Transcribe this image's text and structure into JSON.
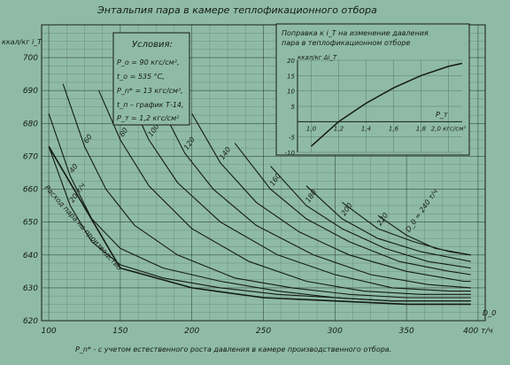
{
  "chart_data": [
    {
      "type": "line",
      "title": "Энтальпия пара в камере теплофикационного отбора",
      "ylabel": "ккал/кг  i_T",
      "ylim": [
        620,
        710
      ],
      "y_ticks": [
        "620",
        "630",
        "640",
        "650",
        "660",
        "670",
        "680",
        "690",
        "700"
      ],
      "xlim": [
        95,
        405
      ],
      "x_ticks": [
        "100",
        "150",
        "200",
        "250",
        "300",
        "350",
        "400 т/ч"
      ],
      "x_ticks_values": [
        100,
        150,
        200,
        250,
        300,
        350,
        400
      ],
      "x_axis_symbol": "D_0",
      "xlabel": "P_n* - с учетом естественного роста давления в камере производственного отбора.",
      "grid": true,
      "conditions": {
        "heading": "Условия:",
        "lines": [
          "P_o = 90 кгс/см²,",
          "t_o = 535 °С,",
          "P_n* = 13 кгс/см²,",
          "t_п – график Т-14,",
          "P_т = 1,2 кгс/см²"
        ]
      },
      "extraction_label": "Расход пара на производство",
      "series": [
        {
          "name": "20 т/ч",
          "values": [
            [
              100,
              673
            ],
            [
              115,
              655
            ],
            [
              130,
              644
            ],
            [
              150,
              637
            ],
            [
              180,
              633
            ],
            [
              220,
              630
            ],
            [
              260,
              628
            ],
            [
              300,
              627
            ],
            [
              340,
              626
            ],
            [
              380,
              626
            ],
            [
              395,
              626
            ]
          ]
        },
        {
          "name": "40",
          "values": [
            [
              100,
              683
            ],
            [
              115,
              664
            ],
            [
              130,
              651
            ],
            [
              150,
              642
            ],
            [
              180,
              636
            ],
            [
              220,
              632
            ],
            [
              260,
              629
            ],
            [
              300,
              627
            ],
            [
              340,
              626
            ],
            [
              380,
              626
            ],
            [
              395,
              626
            ]
          ]
        },
        {
          "name": "60",
          "values": [
            [
              110,
              692
            ],
            [
              125,
              673
            ],
            [
              140,
              660
            ],
            [
              160,
              649
            ],
            [
              190,
              640
            ],
            [
              230,
              633
            ],
            [
              270,
              630
            ],
            [
              310,
              628
            ],
            [
              350,
              627
            ],
            [
              395,
              627
            ]
          ]
        },
        {
          "name": "80",
          "values": [
            [
              135,
              690
            ],
            [
              150,
              675
            ],
            [
              170,
              661
            ],
            [
              200,
              648
            ],
            [
              240,
              638
            ],
            [
              280,
              632
            ],
            [
              320,
              629
            ],
            [
              360,
              628
            ],
            [
              395,
              628
            ]
          ]
        },
        {
          "name": "100",
          "values": [
            [
              155,
              689
            ],
            [
              170,
              675
            ],
            [
              190,
              662
            ],
            [
              220,
              650
            ],
            [
              260,
              640
            ],
            [
              300,
              634
            ],
            [
              340,
              630
            ],
            [
              380,
              629
            ],
            [
              395,
              629
            ]
          ]
        },
        {
          "name": "120",
          "values": [
            [
              175,
              688
            ],
            [
              195,
              671
            ],
            [
              215,
              660
            ],
            [
              245,
              649
            ],
            [
              285,
              640
            ],
            [
              325,
              634
            ],
            [
              365,
              631
            ],
            [
              395,
              630
            ]
          ]
        },
        {
          "name": "140",
          "values": [
            [
              200,
              683
            ],
            [
              220,
              668
            ],
            [
              245,
              656
            ],
            [
              275,
              647
            ],
            [
              310,
              640
            ],
            [
              350,
              635
            ],
            [
              390,
              632
            ],
            [
              395,
              632
            ]
          ]
        },
        {
          "name": "160",
          "values": [
            [
              230,
              674
            ],
            [
              255,
              660
            ],
            [
              280,
              651
            ],
            [
              310,
              644
            ],
            [
              345,
              638
            ],
            [
              380,
              635
            ],
            [
              395,
              634
            ]
          ]
        },
        {
          "name": "180",
          "values": [
            [
              255,
              667
            ],
            [
              280,
              655
            ],
            [
              305,
              648
            ],
            [
              335,
              642
            ],
            [
              365,
              638
            ],
            [
              395,
              636
            ]
          ]
        },
        {
          "name": "200",
          "values": [
            [
              280,
              661
            ],
            [
              305,
              651
            ],
            [
              330,
              645
            ],
            [
              360,
              641
            ],
            [
              395,
              638
            ]
          ]
        },
        {
          "name": "220",
          "values": [
            [
              305,
              656
            ],
            [
              330,
              648
            ],
            [
              355,
              644
            ],
            [
              380,
              641
            ],
            [
              395,
              640
            ]
          ]
        },
        {
          "name": "D_0 = 240 т/ч",
          "values": [
            [
              330,
              652
            ],
            [
              350,
              646
            ],
            [
              370,
              642
            ],
            [
              395,
              640
            ]
          ]
        }
      ],
      "lower_envelope": [
        [
          100,
          673
        ],
        [
          150,
          636
        ],
        [
          200,
          630
        ],
        [
          250,
          627
        ],
        [
          300,
          626
        ],
        [
          350,
          625
        ],
        [
          395,
          625
        ]
      ]
    },
    {
      "type": "line",
      "title": "Поправка к i_T на изменение давления пара в теплофикационном отборе",
      "ylabel": "ккал/кг  Δi_T",
      "ylim": [
        -10,
        20
      ],
      "y_ticks": [
        "-10",
        "-5",
        "5",
        "10",
        "15",
        "20"
      ],
      "xlim": [
        0.9,
        2.1
      ],
      "x_ticks": [
        "1,0",
        "1,2",
        "1,4",
        "1,6",
        "1,8",
        "2,0 кгс/см²"
      ],
      "x_ticks_values": [
        1.0,
        1.2,
        1.4,
        1.6,
        1.8,
        2.0
      ],
      "x_axis_symbol": "P_т",
      "series": [
        {
          "values": [
            [
              1.0,
              -8
            ],
            [
              1.1,
              -4
            ],
            [
              1.2,
              0
            ],
            [
              1.4,
              6
            ],
            [
              1.6,
              11
            ],
            [
              1.8,
              15
            ],
            [
              2.0,
              18
            ],
            [
              2.1,
              19
            ]
          ]
        }
      ]
    }
  ]
}
